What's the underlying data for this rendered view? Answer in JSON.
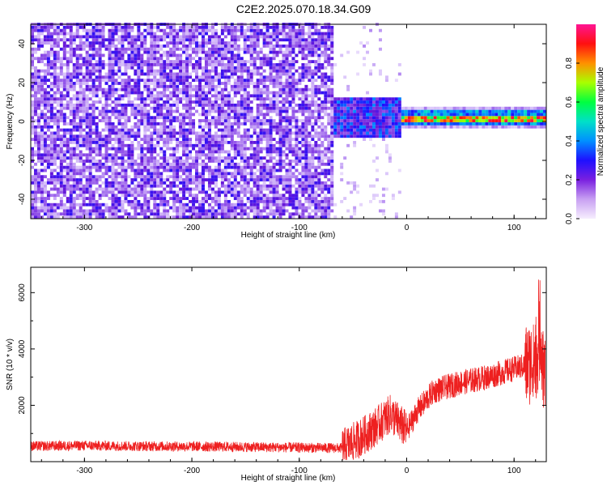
{
  "title": "C2E2.2025.070.18.34.G09",
  "colors": {
    "spectrogram_palette": [
      "#ffffff",
      "#e6d6fa",
      "#b98cf0",
      "#8a3ce6",
      "#6a18d8",
      "#1e10ff",
      "#0090ff",
      "#00e0c8",
      "#00ff40",
      "#c8ff00",
      "#ff9000",
      "#ff1010",
      "#ff1493"
    ],
    "snr_line": "#ee2020"
  },
  "chart_data": [
    {
      "type": "heatmap",
      "title": "C2E2.2025.070.18.34.G09",
      "xlabel": "Height of straight line (km)",
      "ylabel": "Frequency (Hz)",
      "xlim": [
        -350,
        130
      ],
      "ylim": [
        -50,
        50
      ],
      "x_ticks": [
        -300,
        -200,
        -100,
        0,
        100
      ],
      "y_ticks": [
        -40,
        -20,
        0,
        20,
        40
      ],
      "colorbar": {
        "label": "Normalized spectral amplitude",
        "range": [
          0,
          1
        ],
        "ticks": [
          "0.0",
          "0.2",
          "0.4",
          "0.6",
          "0.8"
        ]
      },
      "regions": [
        {
          "x_range": [
            -350,
            -68
          ],
          "description": "broadband noise, amplitude ~0.1-0.2 across all frequencies"
        },
        {
          "x_range": [
            -68,
            -5
          ],
          "frequency_band": [
            -10,
            12
          ],
          "amplitude_range": [
            0.1,
            0.4
          ]
        },
        {
          "x_range": [
            -5,
            130
          ],
          "frequency_band": [
            -4,
            6
          ],
          "peak_frequency": 1,
          "amplitude_range": [
            0.3,
            0.95
          ]
        }
      ]
    },
    {
      "type": "line",
      "xlabel": "Height of straight line (km)",
      "ylabel": "SNR (10 * v/v)",
      "xlim": [
        -350,
        130
      ],
      "ylim": [
        0,
        6900
      ],
      "x_ticks": [
        -300,
        -200,
        -100,
        0,
        100
      ],
      "y_ticks": [
        2000,
        4000,
        6000
      ],
      "series": [
        {
          "x": [
            -350,
            -300,
            -250,
            -200,
            -150,
            -100,
            -60,
            -45,
            -30,
            -15,
            0,
            10,
            25,
            50,
            75,
            100,
            110,
            120,
            125,
            128
          ],
          "y": [
            550,
            570,
            550,
            540,
            520,
            500,
            480,
            800,
            1200,
            1700,
            1100,
            1800,
            2500,
            2800,
            3000,
            3300,
            3400,
            3600,
            4500,
            3000
          ]
        }
      ]
    }
  ]
}
